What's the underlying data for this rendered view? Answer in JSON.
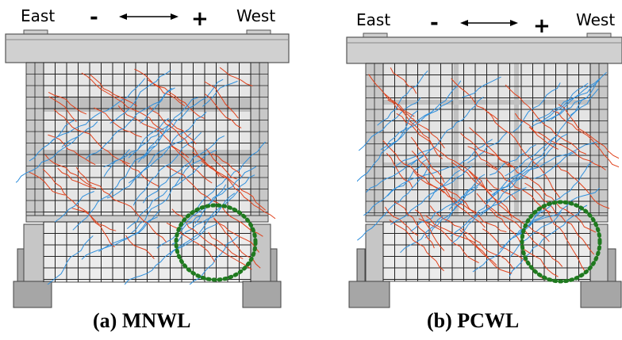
{
  "panels": [
    {
      "id": "a",
      "caption": "(a) MNWL",
      "left_label": "East",
      "right_label": "West",
      "minus_sign": "-",
      "plus_sign": "+"
    },
    {
      "id": "b",
      "caption": "(b) PCWL",
      "left_label": "East",
      "right_label": "West",
      "minus_sign": "-",
      "plus_sign": "+"
    }
  ],
  "colors": {
    "negative_crack": "#e0401a",
    "positive_crack": "#2f8fdc",
    "damage_circle": "#1f7a1f",
    "concrete": "#d7d7d7",
    "grid": "#222222"
  }
}
